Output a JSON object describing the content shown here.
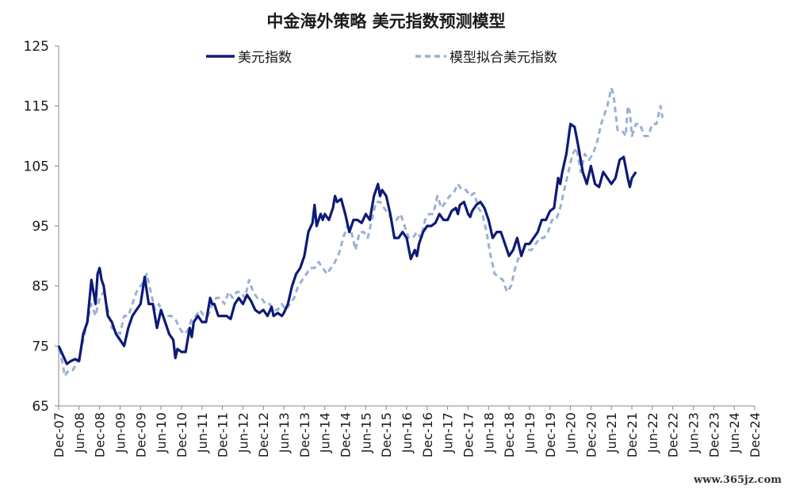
{
  "chart_data": {
    "type": "line",
    "title": "中金海外策略 美元指数预测模型",
    "xlabel": "",
    "ylabel": "",
    "ylim": [
      65,
      125
    ],
    "yticks": [
      65,
      75,
      85,
      95,
      105,
      115,
      125
    ],
    "x_tick_labels": [
      "Dec-07",
      "Jun-08",
      "Dec-08",
      "Jun-09",
      "Dec-09",
      "Jun-10",
      "Dec-10",
      "Jun-11",
      "Dec-11",
      "Jun-12",
      "Dec-12",
      "Jun-13",
      "Dec-13",
      "Jun-14",
      "Dec-14",
      "Jun-15",
      "Dec-15",
      "Jun-16",
      "Dec-16",
      "Jun-17",
      "Dec-17",
      "Jun-18",
      "Dec-18",
      "Jun-19",
      "Dec-19",
      "Jun-20",
      "Dec-20",
      "Jun-21",
      "Dec-21",
      "Jun-22",
      "Dec-22",
      "Jun-23",
      "Dec-23",
      "Jun-24",
      "Dec-24"
    ],
    "x_unit": "half-year periods from Dec-07",
    "legend_position": "top-center",
    "grid": false,
    "series": [
      {
        "name": "美元指数",
        "color": "#0d1a78",
        "style": "solid",
        "points": [
          [
            0,
            75
          ],
          [
            0.2,
            73.5
          ],
          [
            0.4,
            72
          ],
          [
            0.6,
            72.5
          ],
          [
            0.8,
            72.8
          ],
          [
            1.0,
            72.5
          ],
          [
            1.2,
            77
          ],
          [
            1.4,
            79
          ],
          [
            1.6,
            86
          ],
          [
            1.7,
            84
          ],
          [
            1.8,
            82
          ],
          [
            1.9,
            87
          ],
          [
            2.0,
            88
          ],
          [
            2.1,
            86
          ],
          [
            2.2,
            85
          ],
          [
            2.4,
            80
          ],
          [
            2.6,
            79
          ],
          [
            2.8,
            77
          ],
          [
            3.0,
            76
          ],
          [
            3.2,
            75
          ],
          [
            3.4,
            78
          ],
          [
            3.6,
            80
          ],
          [
            3.8,
            81
          ],
          [
            4.0,
            82
          ],
          [
            4.2,
            86.5
          ],
          [
            4.4,
            82
          ],
          [
            4.6,
            82
          ],
          [
            4.8,
            78
          ],
          [
            5.0,
            81
          ],
          [
            5.2,
            79
          ],
          [
            5.4,
            77
          ],
          [
            5.6,
            76
          ],
          [
            5.7,
            73
          ],
          [
            5.8,
            74.5
          ],
          [
            6.0,
            74
          ],
          [
            6.2,
            74
          ],
          [
            6.4,
            78
          ],
          [
            6.5,
            76.5
          ],
          [
            6.6,
            79
          ],
          [
            6.8,
            80
          ],
          [
            7.0,
            79
          ],
          [
            7.2,
            79
          ],
          [
            7.4,
            83
          ],
          [
            7.5,
            82
          ],
          [
            7.6,
            82
          ],
          [
            7.8,
            80
          ],
          [
            8.0,
            80
          ],
          [
            8.2,
            80
          ],
          [
            8.4,
            79.5
          ],
          [
            8.6,
            82
          ],
          [
            8.8,
            83
          ],
          [
            9.0,
            82
          ],
          [
            9.2,
            83.5
          ],
          [
            9.4,
            82.5
          ],
          [
            9.6,
            81
          ],
          [
            9.8,
            80.5
          ],
          [
            10.0,
            81
          ],
          [
            10.2,
            80
          ],
          [
            10.4,
            81.5
          ],
          [
            10.5,
            80
          ],
          [
            10.7,
            80.5
          ],
          [
            10.9,
            80
          ],
          [
            11.0,
            80.5
          ],
          [
            11.2,
            82
          ],
          [
            11.4,
            85
          ],
          [
            11.6,
            87
          ],
          [
            11.8,
            88
          ],
          [
            12.0,
            90
          ],
          [
            12.2,
            94
          ],
          [
            12.4,
            95.5
          ],
          [
            12.5,
            98.5
          ],
          [
            12.6,
            95
          ],
          [
            12.8,
            97
          ],
          [
            12.9,
            96
          ],
          [
            13.0,
            97
          ],
          [
            13.2,
            96
          ],
          [
            13.4,
            98
          ],
          [
            13.5,
            100
          ],
          [
            13.6,
            99
          ],
          [
            13.8,
            99.5
          ],
          [
            14.0,
            97
          ],
          [
            14.2,
            94
          ],
          [
            14.4,
            96
          ],
          [
            14.6,
            96
          ],
          [
            14.8,
            95.5
          ],
          [
            15.0,
            97
          ],
          [
            15.2,
            96
          ],
          [
            15.4,
            100
          ],
          [
            15.6,
            102
          ],
          [
            15.7,
            100
          ],
          [
            15.8,
            101
          ],
          [
            16.0,
            100
          ],
          [
            16.2,
            97
          ],
          [
            16.4,
            93
          ],
          [
            16.6,
            93
          ],
          [
            16.8,
            94
          ],
          [
            17.0,
            93
          ],
          [
            17.2,
            89.5
          ],
          [
            17.4,
            91
          ],
          [
            17.5,
            90
          ],
          [
            17.6,
            92
          ],
          [
            17.8,
            94
          ],
          [
            18.0,
            95
          ],
          [
            18.2,
            95
          ],
          [
            18.4,
            95.5
          ],
          [
            18.6,
            97
          ],
          [
            18.8,
            96
          ],
          [
            19.0,
            96
          ],
          [
            19.2,
            97.5
          ],
          [
            19.4,
            98
          ],
          [
            19.5,
            97
          ],
          [
            19.6,
            98.5
          ],
          [
            19.8,
            99
          ],
          [
            20.0,
            97
          ],
          [
            20.1,
            96.5
          ],
          [
            20.2,
            97.5
          ],
          [
            20.4,
            98.5
          ],
          [
            20.6,
            99
          ],
          [
            20.8,
            98
          ],
          [
            21.0,
            96
          ],
          [
            21.2,
            93
          ],
          [
            21.4,
            94
          ],
          [
            21.6,
            94
          ],
          [
            21.8,
            92
          ],
          [
            22.0,
            90
          ],
          [
            22.2,
            91
          ],
          [
            22.4,
            93
          ],
          [
            22.6,
            90
          ],
          [
            22.8,
            92
          ],
          [
            23.0,
            92
          ],
          [
            23.2,
            93
          ],
          [
            23.4,
            94
          ],
          [
            23.6,
            96
          ],
          [
            23.8,
            96
          ],
          [
            24.0,
            97.5
          ],
          [
            24.2,
            98
          ],
          [
            24.4,
            103
          ],
          [
            24.5,
            102
          ],
          [
            24.6,
            104
          ],
          [
            24.8,
            107
          ],
          [
            25.0,
            112
          ],
          [
            25.2,
            111.5
          ],
          [
            25.4,
            108
          ],
          [
            25.6,
            104
          ],
          [
            25.8,
            102
          ],
          [
            26.0,
            105
          ],
          [
            26.2,
            102
          ],
          [
            26.4,
            101.5
          ],
          [
            26.6,
            104
          ],
          [
            26.8,
            103
          ],
          [
            27.0,
            102
          ],
          [
            27.2,
            103
          ],
          [
            27.4,
            106
          ],
          [
            27.6,
            106.5
          ],
          [
            27.8,
            103
          ],
          [
            27.9,
            101.5
          ],
          [
            28.0,
            103
          ],
          [
            28.2,
            104
          ]
        ]
      },
      {
        "name": "模型拟合美元指数",
        "color": "#9ab0d4",
        "style": "dashed",
        "points": [
          [
            0,
            74.5
          ],
          [
            0.2,
            72
          ],
          [
            0.3,
            70
          ],
          [
            0.5,
            71
          ],
          [
            0.7,
            71
          ],
          [
            1.0,
            73
          ],
          [
            1.2,
            76
          ],
          [
            1.4,
            79
          ],
          [
            1.6,
            82
          ],
          [
            1.8,
            80
          ],
          [
            2.0,
            83
          ],
          [
            2.2,
            84
          ],
          [
            2.4,
            81
          ],
          [
            2.6,
            78
          ],
          [
            2.8,
            77.5
          ],
          [
            3.0,
            77
          ],
          [
            3.2,
            80
          ],
          [
            3.4,
            80
          ],
          [
            3.6,
            82
          ],
          [
            3.8,
            84
          ],
          [
            4.0,
            85
          ],
          [
            4.2,
            86
          ],
          [
            4.3,
            87
          ],
          [
            4.5,
            84
          ],
          [
            4.7,
            81
          ],
          [
            4.9,
            82
          ],
          [
            5.1,
            80
          ],
          [
            5.3,
            80
          ],
          [
            5.5,
            80
          ],
          [
            5.7,
            79.5
          ],
          [
            5.9,
            78
          ],
          [
            6.1,
            77
          ],
          [
            6.3,
            77.5
          ],
          [
            6.5,
            79.5
          ],
          [
            6.7,
            80
          ],
          [
            6.9,
            81
          ],
          [
            7.1,
            80
          ],
          [
            7.3,
            80
          ],
          [
            7.5,
            82
          ],
          [
            7.7,
            83
          ],
          [
            7.9,
            83
          ],
          [
            8.1,
            82
          ],
          [
            8.3,
            84
          ],
          [
            8.5,
            83
          ],
          [
            8.7,
            84
          ],
          [
            8.9,
            84
          ],
          [
            9.1,
            83
          ],
          [
            9.3,
            86
          ],
          [
            9.5,
            84
          ],
          [
            9.7,
            83
          ],
          [
            9.9,
            83
          ],
          [
            10.1,
            82
          ],
          [
            10.3,
            82
          ],
          [
            10.5,
            81
          ],
          [
            10.7,
            81
          ],
          [
            10.9,
            82
          ],
          [
            11.1,
            81
          ],
          [
            11.3,
            82
          ],
          [
            11.5,
            83
          ],
          [
            11.7,
            85
          ],
          [
            11.9,
            86
          ],
          [
            12.1,
            87
          ],
          [
            12.3,
            88
          ],
          [
            12.5,
            88
          ],
          [
            12.7,
            89
          ],
          [
            12.9,
            88
          ],
          [
            13.1,
            87
          ],
          [
            13.3,
            88
          ],
          [
            13.5,
            89
          ],
          [
            13.7,
            90.5
          ],
          [
            13.9,
            93
          ],
          [
            14.1,
            95
          ],
          [
            14.3,
            94
          ],
          [
            14.5,
            91
          ],
          [
            14.7,
            94
          ],
          [
            14.9,
            94
          ],
          [
            15.1,
            93
          ],
          [
            15.3,
            96
          ],
          [
            15.5,
            99
          ],
          [
            15.7,
            99
          ],
          [
            15.9,
            98
          ],
          [
            16.1,
            97
          ],
          [
            16.3,
            96
          ],
          [
            16.5,
            96
          ],
          [
            16.7,
            97
          ],
          [
            16.9,
            95
          ],
          [
            17.1,
            93
          ],
          [
            17.3,
            93
          ],
          [
            17.5,
            94
          ],
          [
            17.7,
            93
          ],
          [
            17.9,
            96
          ],
          [
            18.1,
            97
          ],
          [
            18.3,
            97
          ],
          [
            18.5,
            100
          ],
          [
            18.7,
            98
          ],
          [
            18.9,
            99
          ],
          [
            19.1,
            100
          ],
          [
            19.3,
            100.5
          ],
          [
            19.5,
            102
          ],
          [
            19.7,
            101
          ],
          [
            19.9,
            101
          ],
          [
            20.1,
            100
          ],
          [
            20.3,
            100.5
          ],
          [
            20.5,
            98
          ],
          [
            20.7,
            97
          ],
          [
            20.9,
            94
          ],
          [
            21.1,
            90
          ],
          [
            21.3,
            87
          ],
          [
            21.5,
            86.5
          ],
          [
            21.7,
            86
          ],
          [
            21.9,
            84
          ],
          [
            22.1,
            85
          ],
          [
            22.3,
            88
          ],
          [
            22.5,
            90
          ],
          [
            22.7,
            91
          ],
          [
            22.9,
            91
          ],
          [
            23.1,
            91
          ],
          [
            23.3,
            92
          ],
          [
            23.5,
            93
          ],
          [
            23.7,
            93
          ],
          [
            23.9,
            94
          ],
          [
            24.1,
            96
          ],
          [
            24.3,
            96
          ],
          [
            24.5,
            98
          ],
          [
            24.7,
            101
          ],
          [
            24.9,
            104
          ],
          [
            25.1,
            107
          ],
          [
            25.3,
            108
          ],
          [
            25.5,
            104
          ],
          [
            25.7,
            107
          ],
          [
            25.9,
            106
          ],
          [
            26.1,
            107
          ],
          [
            26.3,
            109
          ],
          [
            26.5,
            112
          ],
          [
            26.7,
            114
          ],
          [
            26.8,
            115
          ],
          [
            27.0,
            118
          ],
          [
            27.1,
            117
          ],
          [
            27.3,
            111
          ],
          [
            27.5,
            111
          ],
          [
            27.7,
            110
          ],
          [
            27.8,
            115
          ],
          [
            27.9,
            114
          ],
          [
            28.0,
            110
          ],
          [
            28.2,
            112
          ],
          [
            28.4,
            112
          ],
          [
            28.6,
            110
          ],
          [
            28.8,
            110
          ],
          [
            29.0,
            112
          ],
          [
            29.2,
            112
          ],
          [
            29.4,
            115
          ],
          [
            29.5,
            113
          ]
        ]
      }
    ]
  },
  "watermark": "www.365jz.com"
}
